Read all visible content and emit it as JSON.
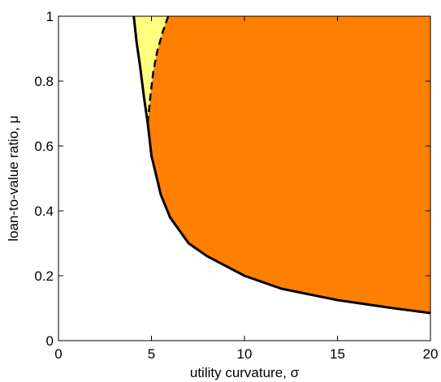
{
  "chart_data": {
    "type": "area",
    "title": "",
    "xlabel": "utility curvature, σ",
    "ylabel": "loan-to-value ratio, μ",
    "xlim": [
      0,
      20
    ],
    "ylim": [
      0,
      1
    ],
    "xticks": [
      0,
      5,
      10,
      15,
      20
    ],
    "yticks": [
      0,
      0.2,
      0.4,
      0.6,
      0.8,
      1
    ],
    "xtick_labels": [
      "0",
      "5",
      "10",
      "15",
      "20"
    ],
    "ytick_labels": [
      "0",
      "0.2",
      "0.4",
      "0.6",
      "0.8",
      "1"
    ],
    "grid": false,
    "legend": "none",
    "boundaries": {
      "solid": {
        "x": [
          4.05,
          4.2,
          4.4,
          4.6,
          4.8,
          5.0,
          5.5,
          6,
          7,
          8,
          10,
          12,
          15,
          18,
          20
        ],
        "y": [
          1.0,
          0.92,
          0.84,
          0.75,
          0.67,
          0.57,
          0.45,
          0.38,
          0.3,
          0.26,
          0.2,
          0.16,
          0.125,
          0.1,
          0.085
        ]
      },
      "dashed": {
        "x": [
          5.9,
          5.6,
          5.3,
          5.1,
          4.95,
          4.85,
          4.8
        ],
        "y": [
          1.0,
          0.95,
          0.89,
          0.83,
          0.76,
          0.7,
          0.67
        ]
      }
    },
    "regions": [
      {
        "color": "#ffff80",
        "bounded_by": [
          "solid",
          "dashed"
        ]
      },
      {
        "color": "#ff8000",
        "bounded_by": [
          "dashed",
          "solid",
          "xlim_max",
          "ylim_max"
        ]
      }
    ],
    "colors": {
      "yellow": "#ffff80",
      "orange": "#ff8000",
      "line": "#000000"
    }
  }
}
